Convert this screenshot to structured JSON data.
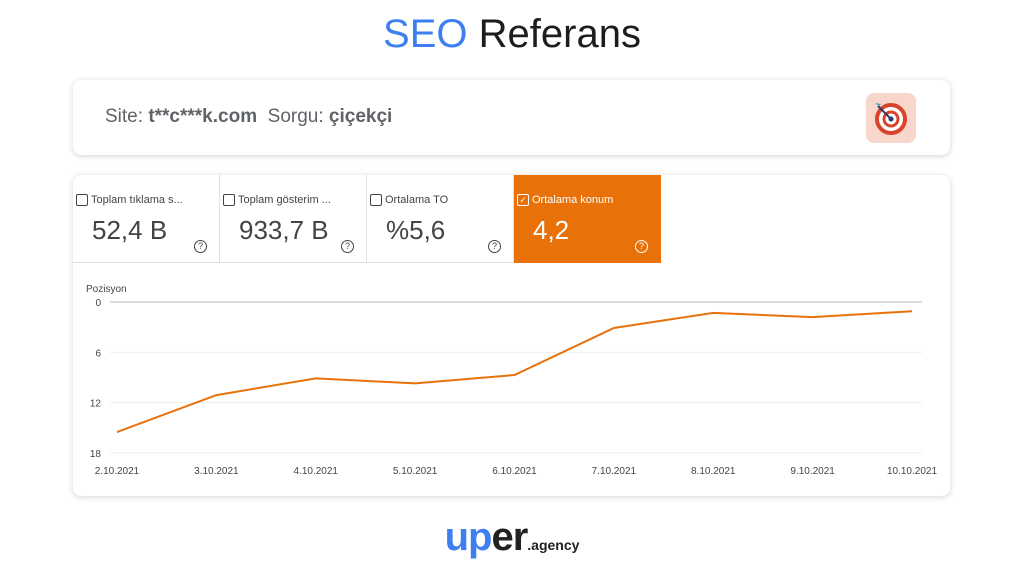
{
  "header": {
    "title_highlight": "SEO",
    "title_rest": "Referans"
  },
  "query_card": {
    "site_label": "Site:",
    "site": "t**c***k.com",
    "query_label": "Sorgu:",
    "query": "çiçekçi"
  },
  "metrics": [
    {
      "label": "Toplam tıklama s...",
      "value": "52,4 B",
      "checked": false
    },
    {
      "label": "Toplam gösterim ...",
      "value": "933,7 B",
      "checked": false
    },
    {
      "label": "Ortalama TO",
      "value": "%5,6",
      "checked": false
    },
    {
      "label": "Ortalama konum",
      "value": "4,2",
      "checked": true
    }
  ],
  "chart_data": {
    "type": "line",
    "y_label": "Pozisyon",
    "categories": [
      "2.10.2021",
      "3.10.2021",
      "4.10.2021",
      "5.10.2021",
      "6.10.2021",
      "7.10.2021",
      "8.10.2021",
      "9.10.2021",
      "10.10.2021"
    ],
    "series": [
      {
        "name": "Ortalama konum",
        "color": "#e8710a",
        "values": [
          15.5,
          11.1,
          9.1,
          9.7,
          8.7,
          3.1,
          1.3,
          1.8,
          1.1
        ]
      }
    ],
    "ylim": [
      0,
      18
    ],
    "yticks": [
      0,
      6,
      12,
      18
    ],
    "y_reversed": true,
    "grid": true
  },
  "logo": {
    "main_blue": "up",
    "main_dark": "er",
    "suffix": ".agency"
  }
}
